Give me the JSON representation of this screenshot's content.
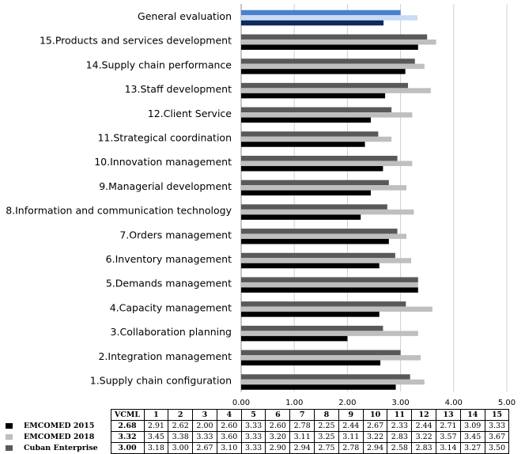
{
  "chart_data": {
    "type": "bar",
    "orientation": "horizontal",
    "categories": [
      "General evaluation",
      "15.Products and services development",
      "14.Supply chain performance",
      "13.Staff development",
      "12.Client Service",
      "11.Strategical coordination",
      "10.Innovation management",
      "9.Managerial development",
      "8.Information and communication technology",
      "7.Orders management",
      "6.Inventory management",
      "5.Demands management",
      "4.Capacity management",
      "3.Collaboration planning",
      "2.Integration management",
      "1.Supply chain configuration"
    ],
    "series": [
      {
        "name": "Cuban Enterprise",
        "color": "#595959",
        "highlight_color": "#4a7fd1",
        "values": [
          3.0,
          3.5,
          3.27,
          3.14,
          2.83,
          2.58,
          2.94,
          2.78,
          2.75,
          2.94,
          2.9,
          3.33,
          3.1,
          2.67,
          3.0,
          3.18
        ]
      },
      {
        "name": "EMCOMED 2018",
        "color": "#bfbfbf",
        "highlight_color": "#c9dcf5",
        "values": [
          3.32,
          3.67,
          3.45,
          3.57,
          3.22,
          2.83,
          3.22,
          3.11,
          3.25,
          3.11,
          3.2,
          3.33,
          3.6,
          3.33,
          3.38,
          3.45
        ]
      },
      {
        "name": "EMCOMED 2015",
        "color": "#000000",
        "highlight_color": "#0d2a5c",
        "values": [
          2.68,
          3.33,
          3.09,
          2.71,
          2.44,
          2.33,
          2.67,
          2.44,
          2.25,
          2.78,
          2.6,
          3.33,
          2.6,
          2.0,
          2.62,
          2.91
        ]
      }
    ],
    "xlim": [
      0,
      5
    ],
    "x_ticks": [
      "0.00",
      "1.00",
      "2.00",
      "3.00",
      "4.00",
      "5.00"
    ],
    "grid": "vertical",
    "legend": "bottom-left, inside data table"
  },
  "table": {
    "columns": [
      "VCML",
      "1",
      "2",
      "3",
      "4",
      "5",
      "6",
      "7",
      "8",
      "9",
      "10",
      "11",
      "12",
      "13",
      "14",
      "15"
    ],
    "rows": [
      {
        "label": "EMCOMED 2015",
        "color": "#000000",
        "values": [
          "2.68",
          "2.91",
          "2.62",
          "2.00",
          "2.60",
          "3.33",
          "2.60",
          "2.78",
          "2.25",
          "2.44",
          "2.67",
          "2.33",
          "2.44",
          "2.71",
          "3.09",
          "3.33"
        ]
      },
      {
        "label": "EMCOMED 2018",
        "color": "#bfbfbf",
        "values": [
          "3.32",
          "3.45",
          "3.38",
          "3.33",
          "3.60",
          "3.33",
          "3.20",
          "3.11",
          "3.25",
          "3.11",
          "3.22",
          "2.83",
          "3.22",
          "3.57",
          "3.45",
          "3.67"
        ]
      },
      {
        "label": "Cuban Enterprise",
        "color": "#595959",
        "values": [
          "3.00",
          "3.18",
          "3.00",
          "2.67",
          "3.10",
          "3.33",
          "2.90",
          "2.94",
          "2.75",
          "2.78",
          "2.94",
          "2.58",
          "2.83",
          "3.14",
          "3.27",
          "3.50"
        ]
      }
    ]
  }
}
